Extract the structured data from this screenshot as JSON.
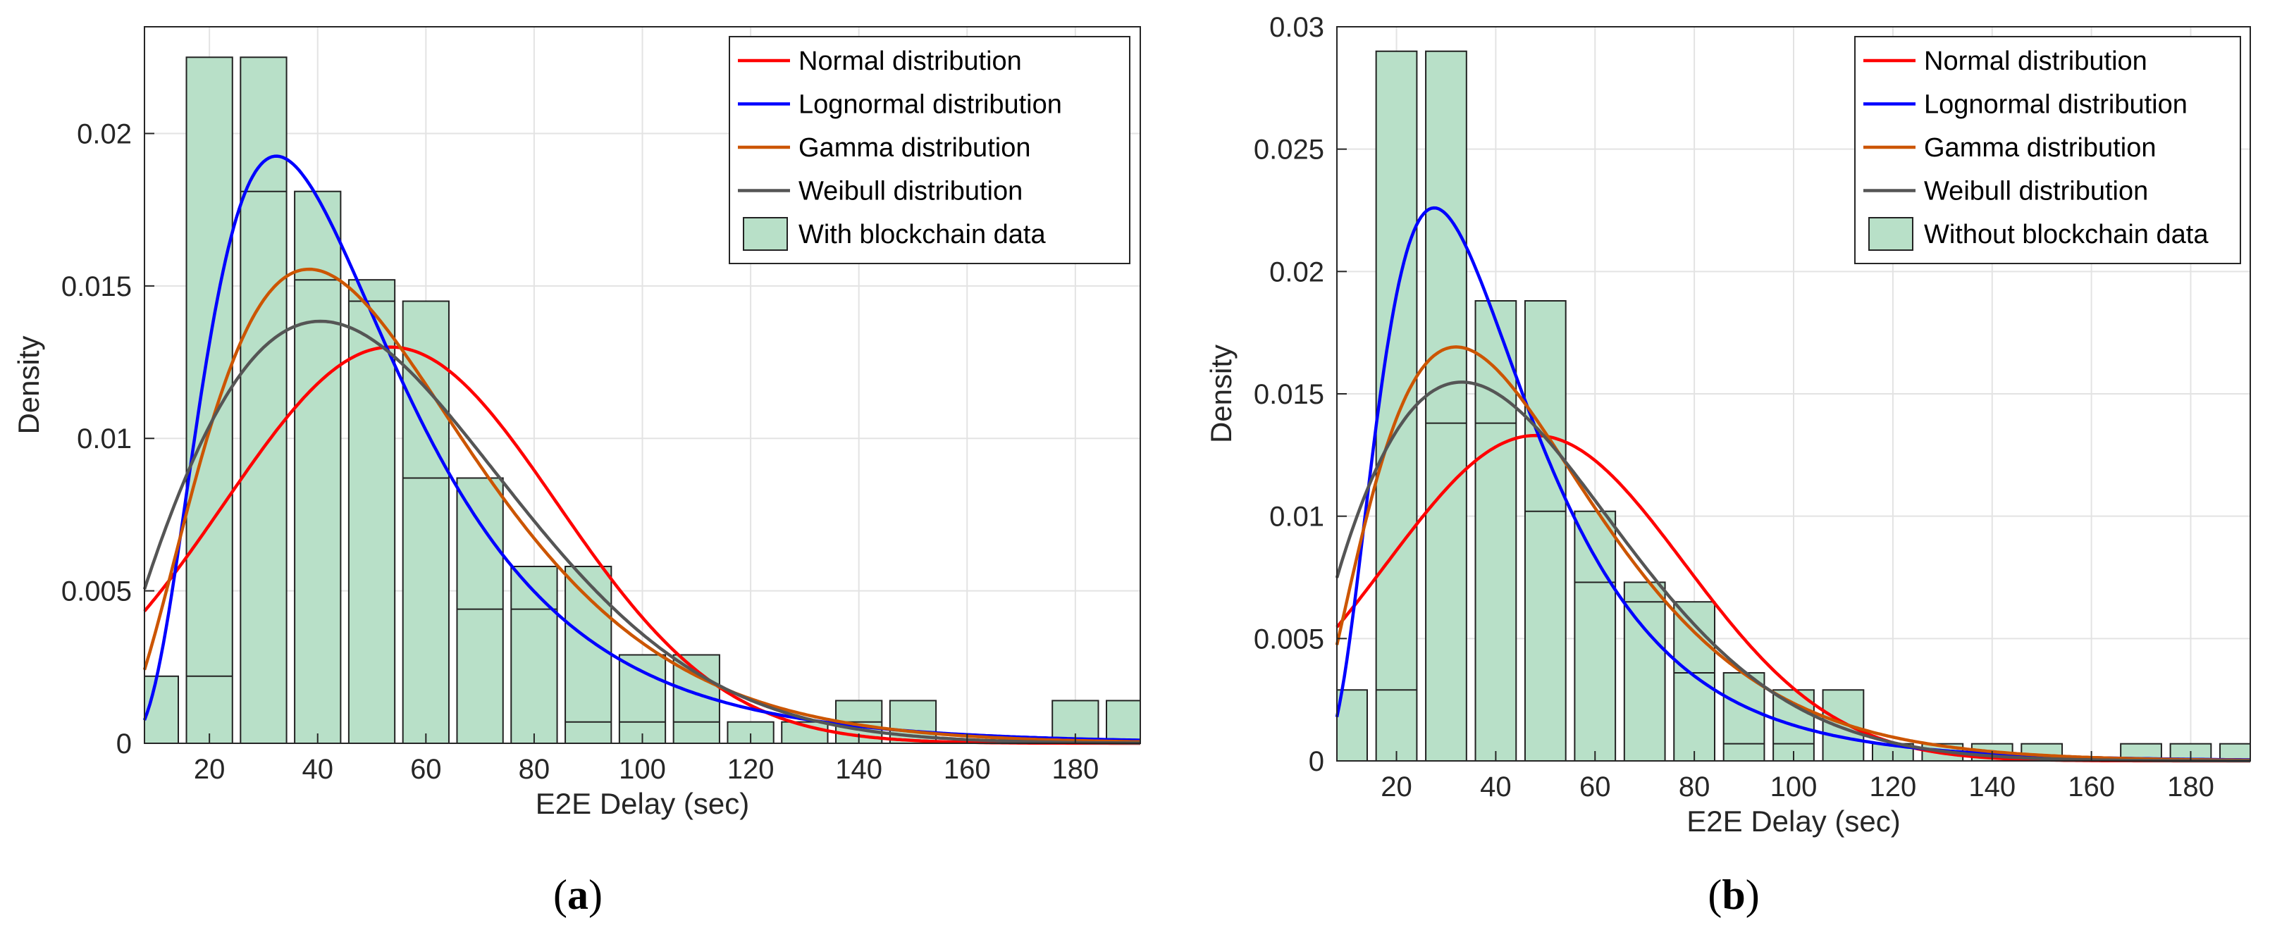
{
  "colors": {
    "bar_fill": "#b8e0c8",
    "bar_edge": "#222222",
    "normal": "#ff0000",
    "lognormal": "#0000ff",
    "gamma": "#cc5500",
    "weibull": "#555555",
    "grid": "#e3e3e3"
  },
  "chart_data": [
    {
      "type": "bar",
      "panel": "a",
      "caption": "(a)",
      "xlabel": "E2E Delay (sec)",
      "ylabel": "Density",
      "xlim": [
        8,
        192
      ],
      "ylim": [
        0,
        0.0235
      ],
      "xticks": [
        20,
        40,
        60,
        80,
        100,
        120,
        140,
        160,
        180
      ],
      "xtick_labels": [
        "20",
        "40",
        "60",
        "80",
        "100",
        "120",
        "140",
        "160",
        "180"
      ],
      "yticks": [
        0,
        0.005,
        0.01,
        0.015,
        0.02
      ],
      "ytick_labels": [
        "0",
        "0.005",
        "0.01",
        "0.015",
        "0.02"
      ],
      "grid": true,
      "legend_position": "top-right",
      "legend": [
        "Normal distribution",
        "Lognormal distribution",
        "Gamma distribution",
        "Weibull distribution",
        "With blockchain data"
      ],
      "bar_width": 8.5,
      "bins": {
        "centers": [
          10,
          20,
          30,
          40,
          50,
          60,
          70,
          80,
          90,
          100,
          110,
          120,
          130,
          140,
          150,
          160,
          170,
          180,
          190
        ],
        "heights": [
          0.0022,
          0.0225,
          0.0225,
          0.0181,
          0.0152,
          0.0145,
          0.0087,
          0.0058,
          0.0058,
          0.0029,
          0.0029,
          0.0007,
          0.0007,
          0.0014,
          0.0014,
          0,
          0,
          0.0014,
          0.0014
        ]
      },
      "inner_lines": {
        "centers": [
          20,
          30,
          40,
          50,
          60,
          70,
          80,
          90,
          100,
          110,
          140
        ],
        "heights": [
          0.0022,
          0.0181,
          0.0152,
          0.0145,
          0.0087,
          0.0044,
          0.0044,
          0.0007,
          0.0007,
          0.0007,
          0.0007
        ]
      },
      "series": [
        {
          "name": "Normal distribution",
          "dist": "normal",
          "mu": 53.5,
          "sigma": 30.7
        },
        {
          "name": "Lognormal distribution",
          "dist": "lognormal",
          "mu": 3.78,
          "sigma": 0.55
        },
        {
          "name": "Gamma distribution",
          "dist": "gamma",
          "k": 3.4,
          "theta": 16
        },
        {
          "name": "Weibull distribution",
          "dist": "weibull",
          "k": 1.9,
          "lambda": 60
        }
      ]
    },
    {
      "type": "bar",
      "panel": "b",
      "caption": "(b)",
      "xlabel": "E2E Delay (sec)",
      "ylabel": "Density",
      "xlim": [
        8,
        192
      ],
      "ylim": [
        0,
        0.03
      ],
      "xticks": [
        20,
        40,
        60,
        80,
        100,
        120,
        140,
        160,
        180
      ],
      "xtick_labels": [
        "20",
        "40",
        "60",
        "80",
        "100",
        "120",
        "140",
        "160",
        "180"
      ],
      "yticks": [
        0,
        0.005,
        0.01,
        0.015,
        0.02,
        0.025,
        0.03
      ],
      "ytick_labels": [
        "0",
        "0.005",
        "0.01",
        "0.015",
        "0.02",
        "0.025",
        "0.03"
      ],
      "grid": true,
      "legend_position": "top-right",
      "legend": [
        "Normal distribution",
        "Lognormal distribution",
        "Gamma distribution",
        "Weibull distribution",
        "Without blockchain data"
      ],
      "bar_width": 8.2,
      "bins": {
        "centers": [
          10,
          20,
          30,
          40,
          50,
          60,
          70,
          80,
          90,
          100,
          110,
          120,
          130,
          140,
          150,
          160,
          170,
          180,
          190
        ],
        "heights": [
          0.0029,
          0.029,
          0.029,
          0.0188,
          0.0188,
          0.0102,
          0.0073,
          0.0065,
          0.0036,
          0.0029,
          0.0029,
          0.0007,
          0.0007,
          0.0007,
          0.0007,
          0,
          0.0007,
          0.0007,
          0.0007
        ]
      },
      "inner_lines": {
        "centers": [
          20,
          30,
          40,
          50,
          60,
          70,
          80,
          90,
          100
        ],
        "heights": [
          0.0029,
          0.0138,
          0.0138,
          0.0102,
          0.0073,
          0.0065,
          0.0036,
          0.0007,
          0.0007
        ]
      },
      "series": [
        {
          "name": "Normal distribution",
          "dist": "normal",
          "mu": 48,
          "sigma": 30
        },
        {
          "name": "Lognormal distribution",
          "dist": "lognormal",
          "mu": 3.62,
          "sigma": 0.55
        },
        {
          "name": "Gamma distribution",
          "dist": "gamma",
          "k": 3.0,
          "theta": 16
        },
        {
          "name": "Weibull distribution",
          "dist": "weibull",
          "k": 1.8,
          "lambda": 52
        }
      ]
    }
  ]
}
